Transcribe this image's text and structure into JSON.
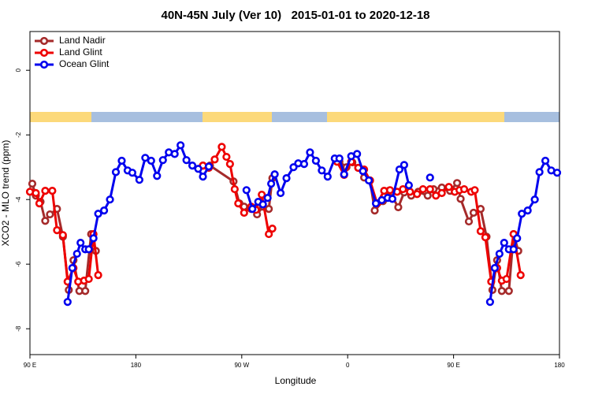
{
  "chart_data": {
    "type": "line",
    "title": "40N-45N July (Ver 10)   2015-01-01 to 2020-12-18",
    "xlabel": "Longitude",
    "ylabel": "XCO2 - MLO trend (ppm)",
    "xlim": [
      90,
      540
    ],
    "ylim": [
      -8.8,
      1.2
    ],
    "xticks": [
      {
        "value": 90,
        "label": "90 E"
      },
      180,
      {
        "value": 270,
        "label": "90 W"
      },
      {
        "value": 360,
        "label": "0"
      },
      {
        "value": 450,
        "label": "90 E"
      },
      {
        "value": 540,
        "label": "180"
      }
    ],
    "yticks": [
      0,
      -2,
      -4,
      -6,
      -8
    ],
    "legend": "upper left",
    "series": [
      {
        "name": "Land Nadir",
        "color": "#a52a2a",
        "x": [
          92,
          95,
          99,
          103,
          107,
          113,
          118,
          123,
          127,
          132,
          137,
          142,
          146,
          null,
          237,
          243,
          263,
          268,
          272,
          278,
          283,
          288,
          293,
          296,
          null,
          353,
          359,
          364,
          369,
          374,
          379,
          383,
          390,
          395,
          403,
          408,
          414,
          420,
          428,
          433,
          440,
          447,
          453,
          456,
          463,
          467,
          473,
          478,
          483,
          487,
          491,
          497,
          501,
          505
        ],
        "values": [
          -3.51,
          -3.88,
          -4.07,
          -4.66,
          -4.46,
          -4.29,
          -5.15,
          -6.8,
          -5.88,
          -6.83,
          -6.83,
          -5.07,
          -5.59,
          null,
          -2.95,
          -2.95,
          -3.44,
          -4.12,
          -4.22,
          -4.29,
          -4.46,
          -4.22,
          -4.29,
          -3.34,
          null,
          -2.83,
          -3.0,
          -2.85,
          -3.02,
          -3.32,
          -3.41,
          -4.34,
          -4.05,
          -3.73,
          -4.24,
          -3.78,
          -3.88,
          -3.76,
          -3.88,
          -3.68,
          -3.63,
          -3.73,
          -3.49,
          -3.98,
          -4.68,
          -4.41,
          -4.29,
          -5.15,
          -6.8,
          -5.88,
          -6.83,
          -6.83,
          -5.07,
          -5.59
        ]
      },
      {
        "name": "Land Glint",
        "color": "#ee0000",
        "x": [
          90,
          95,
          98,
          103,
          109,
          113,
          118,
          122,
          127,
          131,
          136,
          140,
          144,
          148,
          null,
          237,
          242,
          247,
          253,
          257,
          260,
          264,
          267,
          272,
          278,
          282,
          287,
          293,
          296,
          null,
          351,
          357,
          363,
          369,
          374,
          379,
          385,
          391,
          396,
          402,
          407,
          413,
          419,
          424,
          430,
          435,
          440,
          446,
          451,
          455,
          459,
          465,
          468,
          473,
          477,
          482,
          487,
          491,
          495,
          501,
          507
        ],
        "values": [
          -3.76,
          -3.8,
          -4.12,
          -3.73,
          -3.73,
          -4.95,
          -5.1,
          -6.54,
          -6.12,
          -6.54,
          -6.51,
          -6.46,
          -5.07,
          -6.34,
          null,
          -2.95,
          -3.02,
          -2.76,
          -2.37,
          -2.68,
          -2.9,
          -3.68,
          -4.12,
          -4.41,
          -4.22,
          -4.32,
          -3.85,
          -5.07,
          -4.9,
          null,
          -2.83,
          -3.24,
          -2.83,
          -3.02,
          -3.07,
          -3.41,
          -4.12,
          -3.73,
          -3.71,
          -3.76,
          -3.68,
          -3.76,
          -3.83,
          -3.68,
          -3.68,
          -3.88,
          -3.8,
          -3.61,
          -3.76,
          -3.71,
          -3.68,
          -3.76,
          -3.71,
          -4.98,
          -5.17,
          -6.54,
          -6.12,
          -6.51,
          -6.46,
          -5.07,
          -6.34
        ]
      },
      {
        "name": "Ocean Glint",
        "color": "#0000ee",
        "x": [
          122,
          126,
          130,
          133,
          137,
          140,
          144,
          148,
          153,
          158,
          163,
          168,
          173,
          177,
          183,
          188,
          193,
          198,
          203,
          208,
          213,
          218,
          223,
          228,
          233,
          237,
          242,
          null,
          274,
          279,
          284,
          288,
          292,
          295,
          298,
          303,
          308,
          314,
          318,
          323,
          328,
          333,
          338,
          343,
          349,
          353,
          357,
          363,
          368,
          373,
          378,
          384,
          389,
          394,
          398,
          404,
          408,
          412,
          null,
          430,
          null,
          481,
          485,
          489,
          493,
          497,
          501,
          504,
          508,
          513,
          519,
          523,
          528,
          533,
          538
        ],
        "values": [
          -7.17,
          -6.12,
          -5.68,
          -5.34,
          -5.54,
          -5.54,
          -5.2,
          -4.44,
          -4.34,
          -4.0,
          -3.15,
          -2.8,
          -3.1,
          -3.17,
          -3.39,
          -2.71,
          -2.8,
          -3.27,
          -2.78,
          -2.54,
          -2.59,
          -2.32,
          -2.78,
          -2.95,
          -3.05,
          -3.29,
          -2.98,
          null,
          -3.71,
          -4.29,
          -4.07,
          -4.15,
          -3.95,
          -3.51,
          -3.22,
          -3.8,
          -3.34,
          -3.0,
          -2.88,
          -2.9,
          -2.54,
          -2.8,
          -3.1,
          -3.29,
          -2.73,
          -2.73,
          -3.22,
          -2.66,
          -2.59,
          -3.12,
          -3.41,
          -4.12,
          -4.02,
          -3.95,
          -3.98,
          -3.07,
          -2.93,
          -3.56,
          null,
          -3.32,
          null,
          -7.17,
          -6.12,
          -5.68,
          -5.34,
          -5.54,
          -5.54,
          -5.2,
          -4.44,
          -4.34,
          -4.0,
          -3.15,
          -2.8,
          -3.1,
          -3.17
        ]
      }
    ]
  }
}
